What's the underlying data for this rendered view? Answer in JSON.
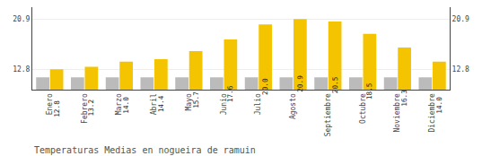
{
  "chart_data": {
    "type": "bar",
    "title": "Temperaturas Medias en nogueira de ramuin",
    "categories": [
      "Enero",
      "Febrero",
      "Marzo",
      "Abril",
      "Mayo",
      "Junio",
      "Julio",
      "Agosto",
      "Septiembre",
      "Octubre",
      "Noviembre",
      "Diciembre"
    ],
    "series": [
      {
        "color": "#BBBBBB",
        "values": [
          11.5,
          11.5,
          11.5,
          11.5,
          11.5,
          11.5,
          11.5,
          11.5,
          11.5,
          11.5,
          11.5,
          11.5
        ]
      },
      {
        "color": "#F5C400",
        "values": [
          12.8,
          13.2,
          14.0,
          14.4,
          15.7,
          17.6,
          20.0,
          20.9,
          20.5,
          18.5,
          16.3,
          14.0
        ],
        "value_labels": [
          "12.8",
          "13.2",
          "14.0",
          "14.4",
          "15.7",
          "17.6",
          "20.0",
          "20.9",
          "20.5",
          "18.5",
          "16.3",
          "14.0"
        ],
        "data_labels": true
      }
    ],
    "ylim": [
      9.5,
      22.8
    ],
    "yticks": [
      12.8,
      20.9
    ],
    "y2lim": [
      9.5,
      22.8
    ],
    "y2ticks": [
      12.8,
      20.9
    ],
    "grid": true
  }
}
